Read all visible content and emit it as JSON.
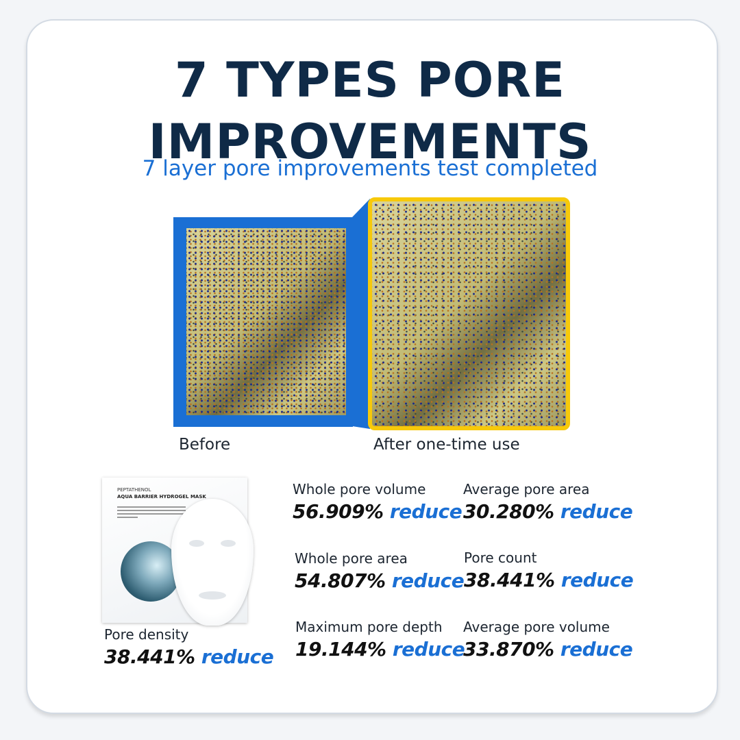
{
  "title_line1": "7 TYPES PORE",
  "title_line2": "IMPROVEMENTS",
  "subtitle": "7 layer pore improvements test completed",
  "colors": {
    "navy": "#0f2a47",
    "blue": "#1a6fd4",
    "yellow": "#f7c90a"
  },
  "comparison": {
    "before_label": "Before",
    "after_label": "After one-time use"
  },
  "product": {
    "brand": "PEPTATHENOL",
    "name": "AQUA BARRIER HYDROGEL MASK"
  },
  "stats": [
    {
      "label": "Pore density",
      "value": "38.441%",
      "suffix": "reduce"
    },
    {
      "label": "Whole pore volume",
      "value": "56.909%",
      "suffix": "reduce"
    },
    {
      "label": "Average pore area",
      "value": "30.280%",
      "suffix": "reduce"
    },
    {
      "label": "Whole pore area",
      "value": "54.807%",
      "suffix": "reduce"
    },
    {
      "label": "Pore count",
      "value": "38.441%",
      "suffix": "reduce"
    },
    {
      "label": "Maximum pore depth",
      "value": "19.144%",
      "suffix": "reduce"
    },
    {
      "label": "Average pore volume",
      "value": "33.870%",
      "suffix": "reduce"
    }
  ]
}
